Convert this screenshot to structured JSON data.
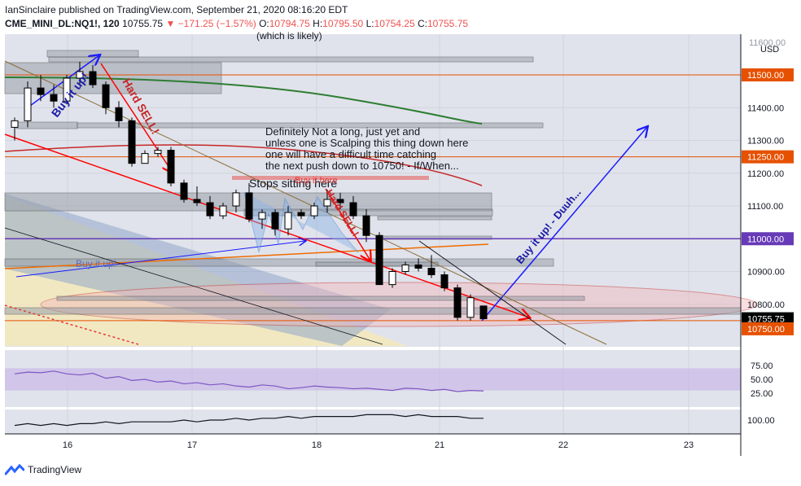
{
  "header": {
    "publisher_line": "IanSinclaire published on TradingView.com, September 21, 2020 08:16:20 EDT",
    "symbol": "CME_MINI_DL:NQ1!, 120",
    "last": "10755.75",
    "change": "▼ −171.25 (−1.57%)",
    "o_label": "O:",
    "o_value": "10794.75",
    "h_label": "H:",
    "h_value": "10795.50",
    "l_label": "L:",
    "l_value": "10754.25",
    "c_label": "C:",
    "c_value": "10755.75"
  },
  "footer": {
    "brand": "TradingView"
  },
  "colors": {
    "bull": "#ffffff",
    "bear": "#000000",
    "orange_line": "#e65100",
    "purple_line": "#673ab7",
    "green_ma": "#2e7d32",
    "red_ma": "#c62828",
    "blue_arrow": "#1a1aff",
    "red_arrow": "#ff0000"
  },
  "chart_data": {
    "type": "candlestick",
    "currency": "USD",
    "price_axis_ticks": [
      11500,
      11400,
      11300,
      11200,
      11100,
      11000,
      10900,
      10800
    ],
    "price_axis_top_partial": "11600.00",
    "price_levels": [
      {
        "label": "11500.00",
        "value": 11500,
        "color": "#e65100"
      },
      {
        "label": "11250.00",
        "value": 11250,
        "color": "#e65100"
      },
      {
        "label": "11000.00",
        "value": 11000,
        "color": "#673ab7"
      },
      {
        "label": "10755.75",
        "value": 10755.75,
        "color": "#000000"
      },
      {
        "label": "10750.00",
        "value": 10750,
        "color": "#e65100"
      }
    ],
    "x_ticks": [
      "16",
      "17",
      "18",
      "21",
      "22",
      "23"
    ],
    "candles": [
      [
        0,
        11340,
        11370,
        11300,
        11360
      ],
      [
        1,
        11360,
        11480,
        11340,
        11460
      ],
      [
        2,
        11460,
        11500,
        11420,
        11440
      ],
      [
        3,
        11440,
        11470,
        11400,
        11420
      ],
      [
        4,
        11420,
        11500,
        11410,
        11490
      ],
      [
        5,
        11490,
        11540,
        11470,
        11510
      ],
      [
        6,
        11510,
        11530,
        11460,
        11470
      ],
      [
        7,
        11470,
        11480,
        11380,
        11400
      ],
      [
        8,
        11400,
        11420,
        11340,
        11360
      ],
      [
        9,
        11360,
        11370,
        11220,
        11230
      ],
      [
        10,
        11230,
        11270,
        11230,
        11260
      ],
      [
        11,
        11260,
        11280,
        11250,
        11270
      ],
      [
        12,
        11270,
        11280,
        11160,
        11170
      ],
      [
        13,
        11170,
        11180,
        11110,
        11120
      ],
      [
        14,
        11120,
        11160,
        11100,
        11110
      ],
      [
        15,
        11110,
        11130,
        11060,
        11070
      ],
      [
        16,
        11070,
        11110,
        11060,
        11100
      ],
      [
        17,
        11100,
        11150,
        11080,
        11140
      ],
      [
        18,
        11140,
        11170,
        11050,
        11060
      ],
      [
        19,
        11060,
        11090,
        11030,
        11080
      ],
      [
        20,
        11080,
        11090,
        11010,
        11030
      ],
      [
        21,
        11030,
        11100,
        11010,
        11080
      ],
      [
        22,
        11080,
        11090,
        11060,
        11070
      ],
      [
        23,
        11070,
        11110,
        11060,
        11100
      ],
      [
        24,
        11100,
        11150,
        11080,
        11120
      ],
      [
        25,
        11120,
        11140,
        11090,
        11110
      ],
      [
        26,
        11110,
        11130,
        11060,
        11070
      ],
      [
        27,
        11070,
        11090,
        10990,
        11010
      ],
      [
        28,
        11010,
        11020,
        10860,
        10860
      ],
      [
        29,
        10860,
        10910,
        10850,
        10900
      ],
      [
        30,
        10900,
        10930,
        10890,
        10920
      ],
      [
        31,
        10920,
        10940,
        10900,
        10910
      ],
      [
        32,
        10910,
        10950,
        10880,
        10890
      ],
      [
        33,
        10890,
        10900,
        10840,
        10850
      ],
      [
        34,
        10850,
        10860,
        10750,
        10760
      ],
      [
        35,
        10760,
        10830,
        10750,
        10820
      ],
      [
        36,
        10794.75,
        10795.5,
        10754.25,
        10755.75
      ]
    ],
    "rsi": {
      "levels": [
        "75.00",
        "50.00",
        "25.00"
      ],
      "values": [
        60,
        63,
        62,
        65,
        60,
        58,
        61,
        52,
        55,
        48,
        50,
        45,
        47,
        42,
        44,
        40,
        42,
        38,
        36,
        40,
        38,
        33,
        35,
        38,
        36,
        35,
        33,
        34,
        32,
        30,
        34,
        33,
        30,
        32,
        28,
        30,
        29
      ]
    },
    "lower_indicator": {
      "level": "100.00",
      "values": [
        97,
        98,
        97,
        98,
        97,
        98,
        98,
        99,
        98,
        99,
        99,
        99,
        99,
        100,
        99,
        100,
        100,
        101,
        100,
        101,
        101,
        102,
        101,
        102,
        102,
        102,
        102,
        103,
        103,
        103,
        102,
        103,
        102,
        102,
        102,
        101,
        101
      ]
    },
    "annotations": [
      "(which is likely)",
      "Definitely Not a long, just yet and",
      "unless one is Scalping this thing down here",
      "one will have a difficult time catching",
      "the next push down to 10750! - If/When...",
      "Stops sitting here",
      "Buy it up!",
      "Hard SELL!",
      "Buy it up! - Duuh...",
      "Buy it up!",
      "Buy it here",
      "Hard SELL!"
    ]
  }
}
